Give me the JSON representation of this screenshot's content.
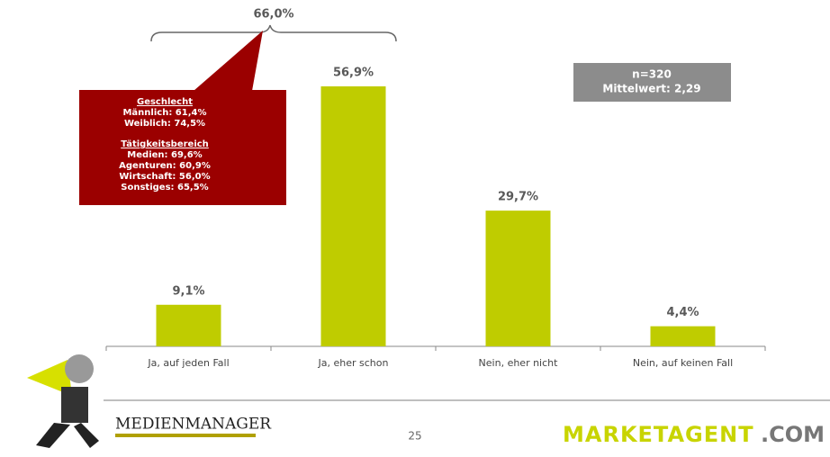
{
  "chart_data": {
    "type": "bar",
    "categories": [
      "Ja, auf jeden Fall",
      "Ja, eher schon",
      "Nein, eher nicht",
      "Nein, auf keinen Fall"
    ],
    "values": [
      9.1,
      56.9,
      29.7,
      4.4
    ],
    "value_labels": [
      "9,1%",
      "56,9%",
      "29,7%",
      "4,4%"
    ],
    "color": "#bfcc00",
    "bracket_label": "66,0%",
    "callout": {
      "groups": [
        {
          "heading": "Geschlecht",
          "lines": [
            "Männlich: 61,4%",
            "Weiblich: 74,5%"
          ]
        },
        {
          "heading": "Tätigkeitsbereich",
          "lines": [
            "Medien: 69,6%",
            "Agenturen: 60,9%",
            "Wirtschaft: 56,0%",
            "Sonstiges: 65,5%"
          ]
        }
      ]
    },
    "stats": [
      "n=320",
      "Mittelwert: 2,29"
    ]
  },
  "footer": {
    "page_number": "25",
    "logo_left": "MEDIENMANAGER",
    "logo_right": "MARKETAGENT",
    "logo_right_suffix": ".COM"
  }
}
